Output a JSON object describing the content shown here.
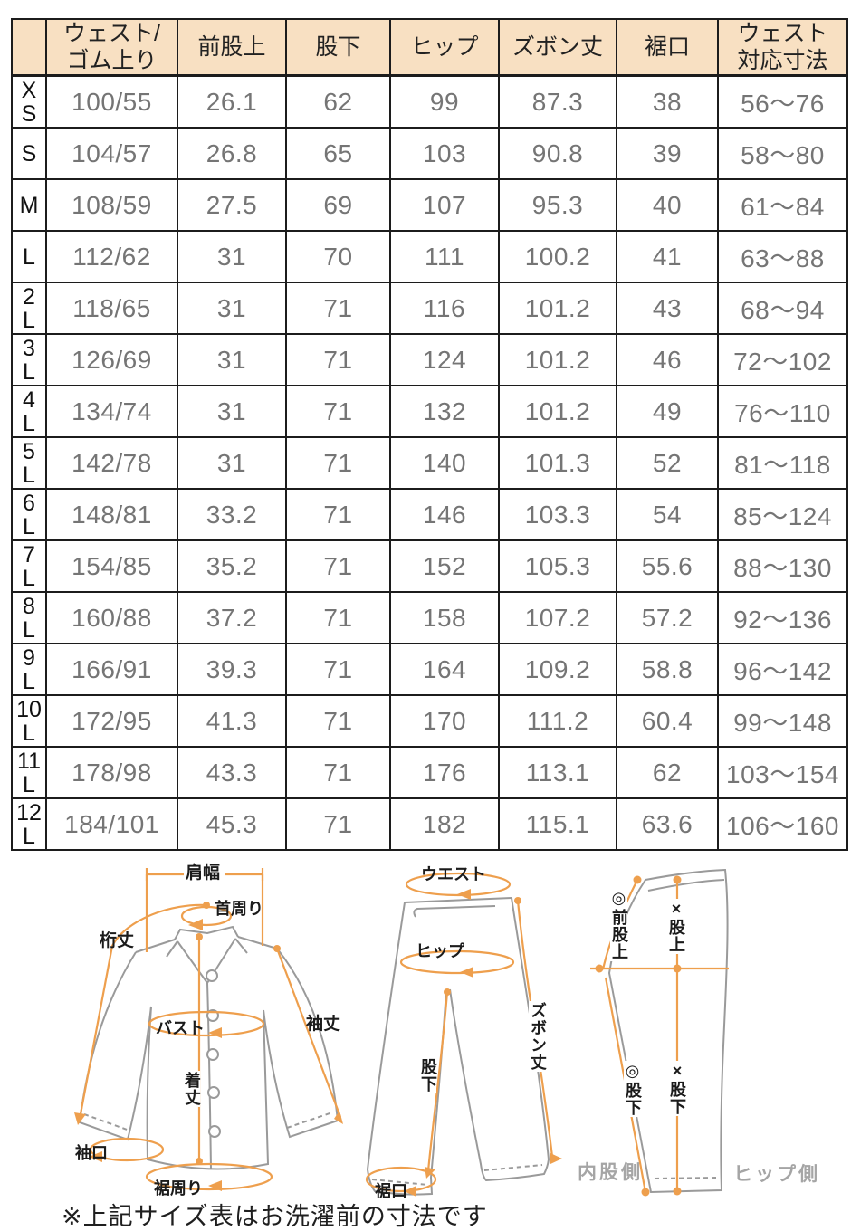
{
  "table": {
    "corner": "",
    "columns": [
      "ウェスト/\nゴム上り",
      "前股上",
      "股下",
      "ヒップ",
      "ズボン丈",
      "裾口",
      "ウェスト\n対応寸法"
    ],
    "rows": [
      {
        "size": "X\nS",
        "cells": [
          "100/55",
          "26.1",
          "62",
          "99",
          "87.3",
          "38",
          "56〜76"
        ]
      },
      {
        "size": "S",
        "cells": [
          "104/57",
          "26.8",
          "65",
          "103",
          "90.8",
          "39",
          "58〜80"
        ]
      },
      {
        "size": "M",
        "cells": [
          "108/59",
          "27.5",
          "69",
          "107",
          "95.3",
          "40",
          "61〜84"
        ]
      },
      {
        "size": "L",
        "cells": [
          "112/62",
          "31",
          "70",
          "111",
          "100.2",
          "41",
          "63〜88"
        ]
      },
      {
        "size": "2\nL",
        "cells": [
          "118/65",
          "31",
          "71",
          "116",
          "101.2",
          "43",
          "68〜94"
        ]
      },
      {
        "size": "3\nL",
        "cells": [
          "126/69",
          "31",
          "71",
          "124",
          "101.2",
          "46",
          "72〜102"
        ]
      },
      {
        "size": "4\nL",
        "cells": [
          "134/74",
          "31",
          "71",
          "132",
          "101.2",
          "49",
          "76〜110"
        ]
      },
      {
        "size": "5\nL",
        "cells": [
          "142/78",
          "31",
          "71",
          "140",
          "101.3",
          "52",
          "81〜118"
        ]
      },
      {
        "size": "6\nL",
        "cells": [
          "148/81",
          "33.2",
          "71",
          "146",
          "103.3",
          "54",
          "85〜124"
        ]
      },
      {
        "size": "7\nL",
        "cells": [
          "154/85",
          "35.2",
          "71",
          "152",
          "105.3",
          "55.6",
          "88〜130"
        ]
      },
      {
        "size": "8\nL",
        "cells": [
          "160/88",
          "37.2",
          "71",
          "158",
          "107.2",
          "57.2",
          "92〜136"
        ]
      },
      {
        "size": "9\nL",
        "cells": [
          "166/91",
          "39.3",
          "71",
          "164",
          "109.2",
          "58.8",
          "96〜142"
        ]
      },
      {
        "size": "10\nL",
        "cells": [
          "172/95",
          "41.3",
          "71",
          "170",
          "111.2",
          "60.4",
          "99〜148"
        ]
      },
      {
        "size": "11\nL",
        "cells": [
          "178/98",
          "43.3",
          "71",
          "176",
          "113.1",
          "62",
          "103〜154"
        ]
      },
      {
        "size": "12\nL",
        "cells": [
          "184/101",
          "45.3",
          "71",
          "182",
          "115.1",
          "63.6",
          "106〜160"
        ]
      }
    ]
  },
  "diagram": {
    "shirt": {
      "shoulder_width": "肩幅",
      "neck_around": "首周り",
      "yuki_length": "桁丈",
      "bust": "バスト",
      "sleeve_length": "袖丈",
      "body_length": "着丈",
      "cuff_opening": "袖口",
      "hem_around": "裾周り"
    },
    "pants_front": {
      "waist": "ウエスト",
      "hip": "ヒップ",
      "pants_length": "ズボン丈",
      "inseam": "股下",
      "hem_opening": "裾口"
    },
    "pants_side": {
      "front_rise": "◎前股上",
      "rise": "×股上",
      "inseam_inner": "◎股下",
      "inseam_hip": "×股下",
      "inner_thigh_side": "内股側",
      "hip_side": "ヒップ側"
    }
  },
  "note": "※上記サイズ表はお洗濯前の寸法です",
  "colors": {
    "header_bg": "#f8e0c2",
    "accent_orange": "#ee9f4d",
    "data_text": "#757575",
    "border": "#1c1c1c",
    "outline_gray": "#9a9a9a",
    "side_label_gray": "#a5a5a5"
  }
}
